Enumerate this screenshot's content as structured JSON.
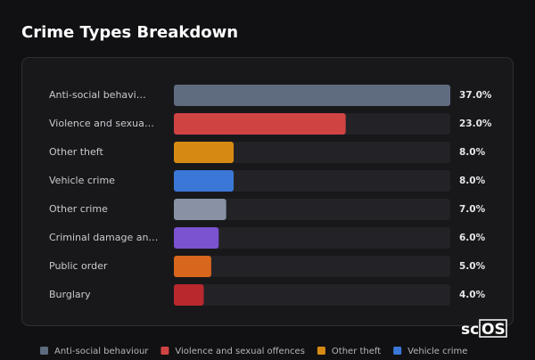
{
  "chart_data": {
    "type": "bar",
    "orientation": "horizontal",
    "title": "Crime Types Breakdown",
    "categories": [
      "Anti-social behavi…",
      "Violence and sexua…",
      "Other theft",
      "Vehicle crime",
      "Other crime",
      "Criminal damage an…",
      "Public order",
      "Burglary"
    ],
    "values": [
      37,
      23,
      8,
      8,
      7,
      6,
      5,
      4
    ],
    "value_labels": [
      "37.0%",
      "23.0%",
      "8.0%",
      "8.0%",
      "7.0%",
      "6.0%",
      "5.0%",
      "4.0%"
    ],
    "colors": [
      "#5f6b7f",
      "#d04343",
      "#d68a14",
      "#3b77d6",
      "#8892a4",
      "#7b52d0",
      "#d8661c",
      "#b9282c"
    ],
    "xlim": [
      0,
      37
    ],
    "legend": [
      {
        "name": "Anti-social behaviour",
        "color": "#5f6b7f"
      },
      {
        "name": "Violence and sexual offences",
        "color": "#d04343"
      },
      {
        "name": "Other theft",
        "color": "#d68a14"
      },
      {
        "name": "Vehicle crime",
        "color": "#3b77d6"
      }
    ]
  },
  "logo": {
    "left": "sc",
    "right": "OS"
  }
}
